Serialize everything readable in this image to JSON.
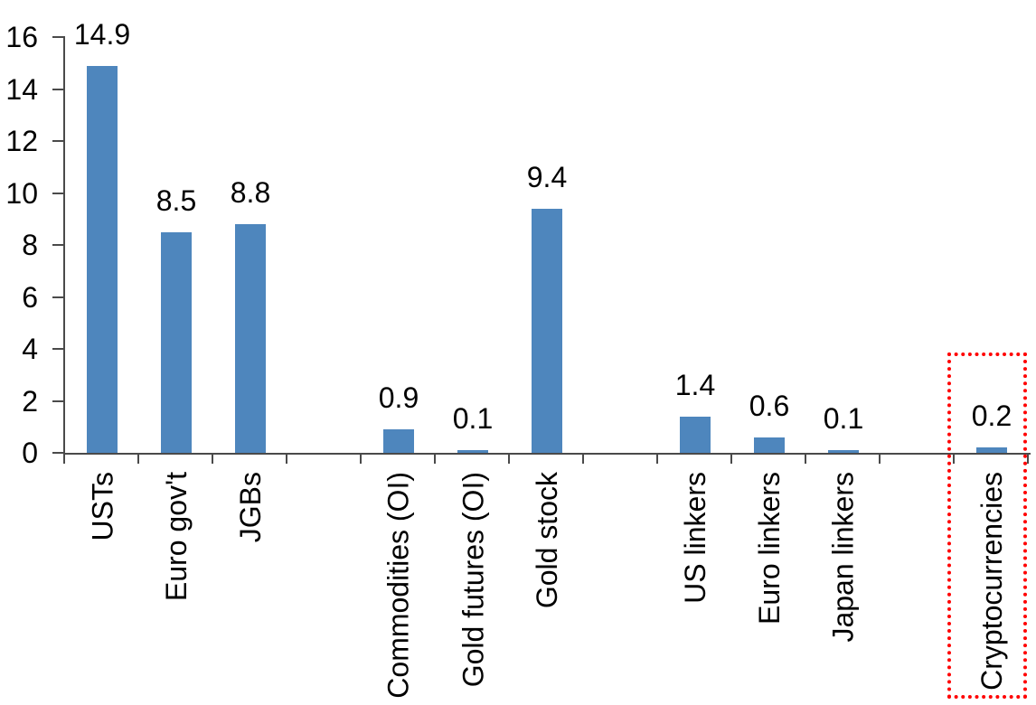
{
  "chart_data": {
    "type": "bar",
    "title": "",
    "xlabel": "",
    "ylabel": "",
    "ylim": [
      0,
      16
    ],
    "yticks": [
      "0",
      "2",
      "4",
      "6",
      "8",
      "10",
      "12",
      "14",
      "16"
    ],
    "grid": false,
    "legend": "none",
    "bar_color": "#4E86BD",
    "axis_color": "#4A4A4A",
    "text_color": "#000000",
    "num_slots": 13,
    "categories": [
      {
        "label": "USTs",
        "value": 14.9,
        "value_label": "14.9",
        "slot": 1
      },
      {
        "label": "Euro gov't",
        "value": 8.5,
        "value_label": "8.5",
        "slot": 2
      },
      {
        "label": "JGBs",
        "value": 8.8,
        "value_label": "8.8",
        "slot": 3
      },
      {
        "label": "Commodities (OI)",
        "value": 0.9,
        "value_label": "0.9",
        "slot": 5
      },
      {
        "label": "Gold futures (OI)",
        "value": 0.1,
        "value_label": "0.1",
        "slot": 6
      },
      {
        "label": "Gold stock",
        "value": 9.4,
        "value_label": "9.4",
        "slot": 7
      },
      {
        "label": "US linkers",
        "value": 1.4,
        "value_label": "1.4",
        "slot": 9
      },
      {
        "label": "Euro linkers",
        "value": 0.6,
        "value_label": "0.6",
        "slot": 10
      },
      {
        "label": "Japan linkers",
        "value": 0.1,
        "value_label": "0.1",
        "slot": 11
      },
      {
        "label": "Cryptocurrencies",
        "value": 0.2,
        "value_label": "0.2",
        "slot": 13
      }
    ],
    "highlight": {
      "category": "Cryptocurrencies",
      "style": "dotted-box",
      "color": "#FF0000"
    }
  }
}
